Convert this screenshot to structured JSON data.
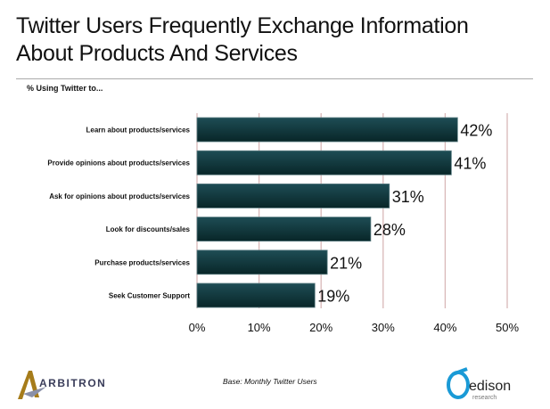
{
  "chart_data": {
    "type": "bar",
    "orientation": "horizontal",
    "title": "Twitter Users Frequently Exchange Information About Products And Services",
    "subtitle": "% Using Twitter to...",
    "categories": [
      "Learn about products/services",
      "Provide opinions about products/services",
      "Ask for opinions about products/services",
      "Look for discounts/sales",
      "Purchase products/services",
      "Seek Customer Support"
    ],
    "values": [
      42,
      41,
      31,
      28,
      21,
      19
    ],
    "data_labels": [
      "42%",
      "41%",
      "31%",
      "28%",
      "21%",
      "19%"
    ],
    "xlim": [
      0,
      50
    ],
    "x_ticks": [
      "0%",
      "10%",
      "20%",
      "30%",
      "40%",
      "50%"
    ],
    "grid": "vertical",
    "bar_color": "#123c42",
    "grid_color": "#d9b8b8"
  },
  "footer": {
    "base_note": "Base: Monthly Twitter Users",
    "logo_left": "ARBITRON",
    "logo_right": "edison research"
  }
}
